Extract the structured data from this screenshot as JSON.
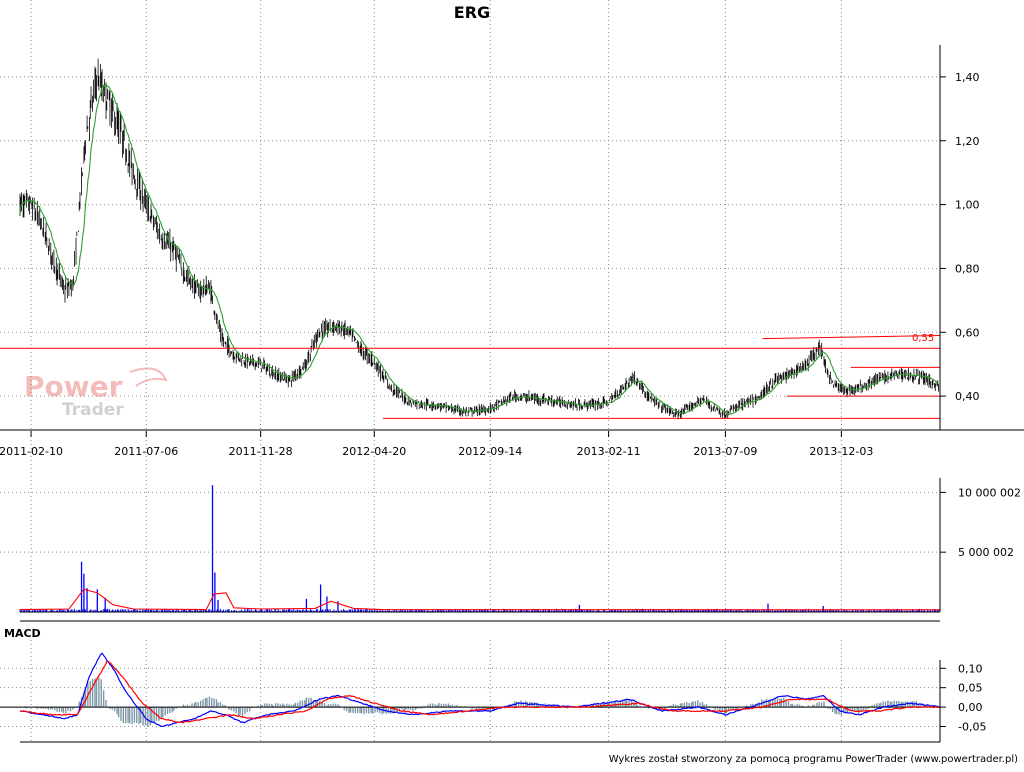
{
  "chart_data": [
    {
      "type": "candlestick",
      "title": "ERG",
      "y_ticks": [
        "1,40",
        "1,20",
        "1,00",
        "0,80",
        "0,60",
        "0,40"
      ],
      "y_tick_values": [
        1.4,
        1.2,
        1.0,
        0.8,
        0.6,
        0.4
      ],
      "ylim": [
        0.3,
        1.5
      ],
      "x_ticks": [
        "2011-02-10",
        "2011-07-06",
        "2011-11-28",
        "2012-04-20",
        "2012-09-14",
        "2013-02-11",
        "2013-07-09",
        "2013-12-03"
      ],
      "xlim": [
        "2011-01-27",
        "2014-04-07"
      ],
      "price_path": [
        [
          "2011-01-27",
          1.0
        ],
        [
          "2011-02-10",
          1.0
        ],
        [
          "2011-02-25",
          0.93
        ],
        [
          "2011-03-10",
          0.83
        ],
        [
          "2011-03-25",
          0.73
        ],
        [
          "2011-04-05",
          0.75
        ],
        [
          "2011-04-20",
          1.2
        ],
        [
          "2011-05-05",
          1.4
        ],
        [
          "2011-05-20",
          1.32
        ],
        [
          "2011-06-05",
          1.22
        ],
        [
          "2011-06-20",
          1.1
        ],
        [
          "2011-07-06",
          1.0
        ],
        [
          "2011-07-25",
          0.9
        ],
        [
          "2011-08-10",
          0.86
        ],
        [
          "2011-08-25",
          0.78
        ],
        [
          "2011-09-10",
          0.73
        ],
        [
          "2011-09-25",
          0.74
        ],
        [
          "2011-10-10",
          0.58
        ],
        [
          "2011-10-25",
          0.53
        ],
        [
          "2011-11-10",
          0.51
        ],
        [
          "2011-11-28",
          0.5
        ],
        [
          "2011-12-15",
          0.47
        ],
        [
          "2012-01-05",
          0.45
        ],
        [
          "2012-01-25",
          0.5
        ],
        [
          "2012-02-10",
          0.6
        ],
        [
          "2012-03-01",
          0.62
        ],
        [
          "2012-03-20",
          0.6
        ],
        [
          "2012-04-05",
          0.54
        ],
        [
          "2012-04-20",
          0.51
        ],
        [
          "2012-05-10",
          0.43
        ],
        [
          "2012-06-05",
          0.38
        ],
        [
          "2012-07-10",
          0.37
        ],
        [
          "2012-08-15",
          0.35
        ],
        [
          "2012-09-14",
          0.36
        ],
        [
          "2012-10-15",
          0.4
        ],
        [
          "2012-11-20",
          0.39
        ],
        [
          "2013-01-05",
          0.37
        ],
        [
          "2013-02-11",
          0.38
        ],
        [
          "2013-03-15",
          0.46
        ],
        [
          "2013-04-10",
          0.38
        ],
        [
          "2013-05-10",
          0.34
        ],
        [
          "2013-06-10",
          0.39
        ],
        [
          "2013-07-09",
          0.34
        ],
        [
          "2013-07-25",
          0.37
        ],
        [
          "2013-08-20",
          0.39
        ],
        [
          "2013-09-10",
          0.45
        ],
        [
          "2013-10-01",
          0.47
        ],
        [
          "2013-10-25",
          0.51
        ],
        [
          "2013-11-05",
          0.56
        ],
        [
          "2013-11-20",
          0.45
        ],
        [
          "2013-12-03",
          0.42
        ],
        [
          "2013-12-20",
          0.42
        ],
        [
          "2014-01-15",
          0.45
        ],
        [
          "2014-02-15",
          0.47
        ],
        [
          "2014-03-15",
          0.46
        ],
        [
          "2014-04-07",
          0.43
        ]
      ],
      "annotations": {
        "horizontal_line": {
          "value": 0.55
        },
        "level_label": "0,55",
        "trend_lines": [
          {
            "from": [
              "2013-08-25",
              0.58
            ],
            "to": [
              "2014-04-07",
              0.59
            ]
          },
          {
            "from": [
              "2013-12-15",
              0.49
            ],
            "to": [
              "2014-04-07",
              0.49
            ]
          },
          {
            "from": [
              "2013-09-25",
              0.4
            ],
            "to": [
              "2014-04-07",
              0.4
            ]
          },
          {
            "from": [
              "2012-05-01",
              0.33
            ],
            "to": [
              "2014-04-07",
              0.33
            ]
          }
        ]
      },
      "colors": {
        "candle": "#000000",
        "moving_average": "#2ca02c",
        "annotation": "#ff0000"
      },
      "legend": "none",
      "grid": "vertical-dotted"
    },
    {
      "type": "bar",
      "y_ticks": [
        "10 000 002",
        "5 000 002"
      ],
      "y_tick_values": [
        10000002,
        5000002
      ],
      "ylim": [
        0,
        11200000
      ],
      "spikes": [
        [
          "2011-04-15",
          4200000
        ],
        [
          "2011-04-18",
          3200000
        ],
        [
          "2011-04-22",
          2000000
        ],
        [
          "2011-05-05",
          1900000
        ],
        [
          "2011-05-15",
          1200000
        ],
        [
          "2011-09-28",
          10600000
        ],
        [
          "2011-10-01",
          3300000
        ],
        [
          "2011-10-05",
          1000000
        ],
        [
          "2012-02-12",
          2300000
        ],
        [
          "2012-02-20",
          1300000
        ],
        [
          "2012-03-05",
          900000
        ],
        [
          "2012-01-25",
          1100000
        ],
        [
          "2013-01-05",
          600000
        ],
        [
          "2013-09-01",
          700000
        ],
        [
          "2013-11-10",
          500000
        ]
      ],
      "baseline_volume": 150000,
      "moving_average": [
        [
          "2011-01-27",
          200000
        ],
        [
          "2011-03-30",
          250000
        ],
        [
          "2011-04-18",
          1900000
        ],
        [
          "2011-05-05",
          1600000
        ],
        [
          "2011-05-25",
          600000
        ],
        [
          "2011-06-20",
          250000
        ],
        [
          "2011-09-20",
          200000
        ],
        [
          "2011-09-30",
          1500000
        ],
        [
          "2011-10-15",
          1600000
        ],
        [
          "2011-10-25",
          350000
        ],
        [
          "2011-11-28",
          250000
        ],
        [
          "2012-02-05",
          300000
        ],
        [
          "2012-02-25",
          900000
        ],
        [
          "2012-03-25",
          300000
        ],
        [
          "2012-05-01",
          200000
        ],
        [
          "2014-04-07",
          180000
        ]
      ],
      "colors": {
        "bars": "#0000ff",
        "moving_average": "#ff0000"
      }
    },
    {
      "type": "line",
      "panel_title": "MACD",
      "y_ticks": [
        "0,10",
        "0,05",
        "0,00",
        "-0,05"
      ],
      "y_tick_values": [
        0.1,
        0.05,
        0.0,
        -0.05
      ],
      "ylim": [
        -0.09,
        0.16
      ],
      "series": [
        {
          "values": [
            [
              "2011-01-27",
              -0.01
            ],
            [
              "2011-02-25",
              -0.02
            ],
            [
              "2011-03-25",
              -0.03
            ],
            [
              "2011-04-10",
              -0.02
            ],
            [
              "2011-04-25",
              0.08
            ],
            [
              "2011-05-10",
              0.14
            ],
            [
              "2011-05-25",
              0.1
            ],
            [
              "2011-06-10",
              0.04
            ],
            [
              "2011-07-06",
              -0.03
            ],
            [
              "2011-07-25",
              -0.05
            ],
            [
              "2011-08-15",
              -0.04
            ],
            [
              "2011-09-05",
              -0.03
            ],
            [
              "2011-09-25",
              -0.01
            ],
            [
              "2011-10-15",
              -0.02
            ],
            [
              "2011-11-05",
              -0.04
            ],
            [
              "2011-12-05",
              -0.02
            ],
            [
              "2012-01-10",
              -0.01
            ],
            [
              "2012-02-10",
              0.02
            ],
            [
              "2012-03-05",
              0.03
            ],
            [
              "2012-04-05",
              0.01
            ],
            [
              "2012-05-05",
              -0.01
            ],
            [
              "2012-06-10",
              -0.02
            ],
            [
              "2012-07-20",
              -0.01
            ],
            [
              "2012-09-14",
              -0.01
            ],
            [
              "2012-10-20",
              0.01
            ],
            [
              "2013-01-01",
              0.0
            ],
            [
              "2013-03-10",
              0.02
            ],
            [
              "2013-04-20",
              -0.01
            ],
            [
              "2013-06-05",
              0.0
            ],
            [
              "2013-07-09",
              -0.02
            ],
            [
              "2013-08-10",
              0.0
            ],
            [
              "2013-09-20",
              0.03
            ],
            [
              "2013-10-20",
              0.02
            ],
            [
              "2013-11-10",
              0.03
            ],
            [
              "2013-12-01",
              -0.01
            ],
            [
              "2013-12-25",
              -0.02
            ],
            [
              "2014-01-25",
              0.0
            ],
            [
              "2014-03-01",
              0.01
            ],
            [
              "2014-04-07",
              0.0
            ]
          ]
        },
        {
          "values": [
            [
              "2011-01-27",
              -0.01
            ],
            [
              "2011-03-10",
              -0.02
            ],
            [
              "2011-04-10",
              -0.02
            ],
            [
              "2011-05-01",
              0.06
            ],
            [
              "2011-05-18",
              0.12
            ],
            [
              "2011-06-05",
              0.08
            ],
            [
              "2011-07-01",
              0.01
            ],
            [
              "2011-07-25",
              -0.03
            ],
            [
              "2011-08-20",
              -0.04
            ],
            [
              "2011-09-20",
              -0.03
            ],
            [
              "2011-10-20",
              -0.02
            ],
            [
              "2011-11-20",
              -0.03
            ],
            [
              "2011-12-20",
              -0.02
            ],
            [
              "2012-01-25",
              -0.01
            ],
            [
              "2012-02-20",
              0.02
            ],
            [
              "2012-03-20",
              0.03
            ],
            [
              "2012-04-20",
              0.01
            ],
            [
              "2012-05-25",
              -0.01
            ],
            [
              "2012-07-01",
              -0.02
            ],
            [
              "2012-08-15",
              -0.01
            ],
            [
              "2012-10-01",
              0.0
            ],
            [
              "2013-01-10",
              0.0
            ],
            [
              "2013-03-20",
              0.01
            ],
            [
              "2013-05-01",
              -0.01
            ],
            [
              "2013-07-09",
              -0.01
            ],
            [
              "2013-08-25",
              0.0
            ],
            [
              "2013-09-30",
              0.02
            ],
            [
              "2013-11-15",
              0.02
            ],
            [
              "2013-12-15",
              -0.01
            ],
            [
              "2014-01-20",
              -0.01
            ],
            [
              "2014-03-01",
              0.0
            ],
            [
              "2014-04-07",
              0.0
            ]
          ]
        }
      ],
      "histogram_color": "#7f98a8",
      "colors": {
        "macd": "#0000ff",
        "signal": "#ff0000"
      }
    }
  ],
  "footer": {
    "text": "Wykres został stworzony za pomocą programu PowerTrader (www.powertrader.pl)"
  },
  "watermark": {
    "line1": "Power",
    "line2": "Trader"
  }
}
